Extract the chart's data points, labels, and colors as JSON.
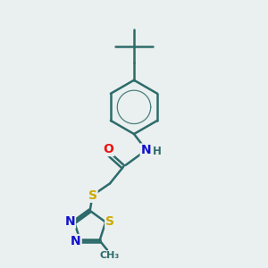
{
  "background_color": "#eaf0ef",
  "bond_color": "#2d6b6b",
  "bond_width": 1.8,
  "atom_colors": {
    "O": "#ee1111",
    "N": "#1111cc",
    "S": "#ccaa00",
    "C": "#2d6b6b",
    "H": "#2d6b6b"
  },
  "font_size": 10,
  "font_size_small": 8.5,
  "font_size_methyl": 8
}
